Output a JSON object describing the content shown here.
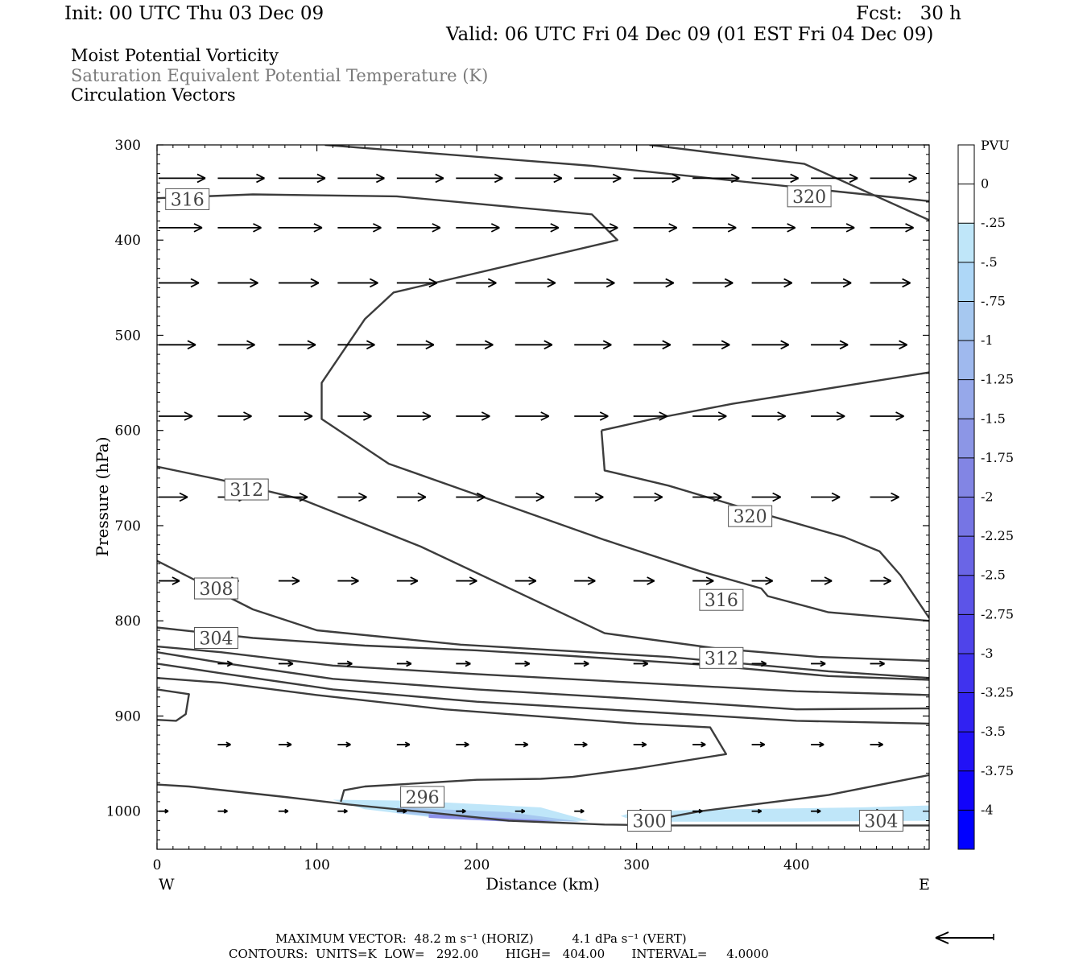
{
  "header": {
    "init": "Init: 00 UTC Thu 03 Dec 09",
    "fcst": "Fcst:   30 h",
    "valid": "Valid: 06 UTC Fri 04 Dec 09 (01 EST Fri 04 Dec 09)"
  },
  "titles": [
    "Moist Potential Vorticity",
    "Saturation Equivalent Potential Temperature (K)",
    "Circulation Vectors"
  ],
  "footer": {
    "max_vector": "MAXIMUM VECTOR:  48.2 m s⁻¹ (HORIZ)          4.1 dPa s⁻¹ (VERT)",
    "contours": "CONTOURS:  UNITS=K  LOW=   292.00       HIGH=   404.00       INTERVAL=     4.0000"
  },
  "colors": {
    "contour": "#3c3c3c",
    "shade_light": "#bfe6f9",
    "shade_mid": "#a6c8f0",
    "shade_dark": "#8c90e8"
  },
  "chart_data": {
    "type": "contour",
    "xlabel": "Distance (km)",
    "ylabel": "Pressure (hPa)",
    "xlim": [
      0,
      483
    ],
    "ylim": [
      1040,
      300
    ],
    "x_ticks": [
      0,
      100,
      200,
      300,
      400
    ],
    "y_ticks": [
      300,
      400,
      500,
      600,
      700,
      800,
      900,
      1000
    ],
    "x_end_labels": {
      "left": "W",
      "right": "E"
    },
    "colorbar": {
      "label": "PVU",
      "ticks": [
        "0",
        "-.25",
        "-.5",
        "-.75",
        "-1",
        "-1.25",
        "-1.5",
        "-1.75",
        "-2",
        "-2.25",
        "-2.5",
        "-2.75",
        "-3",
        "-3.25",
        "-3.5",
        "-3.75",
        "-4"
      ],
      "colors": [
        "#ffffff",
        "#ffffff",
        "#bfe6f9",
        "#aed7f7",
        "#a6c8f0",
        "#9fb9ee",
        "#96a8ea",
        "#8c96e6",
        "#8285e4",
        "#7675e4",
        "#6a65e6",
        "#5c54e8",
        "#4f44ea",
        "#4033ee",
        "#3122f2",
        "#2212f6",
        "#1204fa",
        "#0000ff"
      ]
    },
    "contour_labels": [
      {
        "text": "316",
        "x": 19,
        "p": 357
      },
      {
        "text": "320",
        "x": 408,
        "p": 354
      },
      {
        "text": "312",
        "x": 56,
        "p": 662
      },
      {
        "text": "320",
        "x": 371,
        "p": 690
      },
      {
        "text": "308",
        "x": 37,
        "p": 766
      },
      {
        "text": "316",
        "x": 353,
        "p": 778
      },
      {
        "text": "304",
        "x": 37,
        "p": 818
      },
      {
        "text": "312",
        "x": 353,
        "p": 839
      },
      {
        "text": "296",
        "x": 166,
        "p": 985
      },
      {
        "text": "300",
        "x": 308,
        "p": 1010
      },
      {
        "text": "304",
        "x": 453,
        "p": 1010
      }
    ],
    "contours": [
      {
        "pts": [
          [
            105,
            300
          ],
          [
            272,
            322
          ],
          [
            483,
            359
          ]
        ]
      },
      {
        "pts": [
          [
            308,
            300
          ],
          [
            405,
            320
          ],
          [
            483,
            379
          ]
        ]
      },
      {
        "pts": [
          [
            0,
            356
          ],
          [
            60,
            352
          ],
          [
            150,
            354
          ],
          [
            272,
            373
          ],
          [
            288,
            400
          ],
          [
            148,
            455
          ],
          [
            130,
            483
          ],
          [
            103,
            550
          ],
          [
            103,
            588
          ],
          [
            145,
            635
          ],
          [
            280,
            715
          ],
          [
            340,
            748
          ],
          [
            378,
            766
          ],
          [
            382,
            774
          ],
          [
            420,
            791
          ],
          [
            483,
            800
          ]
        ]
      },
      {
        "pts": [
          [
            278,
            600
          ],
          [
            310,
            588
          ],
          [
            360,
            572
          ],
          [
            483,
            539
          ]
        ]
      },
      {
        "pts": [
          [
            278,
            600
          ],
          [
            280,
            642
          ],
          [
            320,
            658
          ],
          [
            380,
            688
          ],
          [
            430,
            712
          ],
          [
            452,
            727
          ],
          [
            465,
            752
          ],
          [
            483,
            797
          ]
        ]
      },
      {
        "pts": [
          [
            0,
            638
          ],
          [
            40,
            652
          ],
          [
            90,
            672
          ],
          [
            165,
            722
          ],
          [
            280,
            813
          ],
          [
            350,
            829
          ],
          [
            414,
            838
          ],
          [
            483,
            842
          ]
        ]
      },
      {
        "pts": [
          [
            0,
            737
          ],
          [
            60,
            788
          ],
          [
            100,
            810
          ],
          [
            190,
            825
          ],
          [
            320,
            838
          ],
          [
            420,
            853
          ],
          [
            483,
            860
          ]
        ]
      },
      {
        "pts": [
          [
            0,
            807
          ],
          [
            60,
            818
          ],
          [
            130,
            826
          ],
          [
            200,
            831
          ],
          [
            260,
            837
          ],
          [
            340,
            846
          ],
          [
            420,
            858
          ],
          [
            483,
            862
          ]
        ]
      },
      {
        "pts": [
          [
            0,
            827
          ],
          [
            40,
            833
          ],
          [
            110,
            847
          ],
          [
            200,
            856
          ],
          [
            300,
            865
          ],
          [
            400,
            874
          ],
          [
            483,
            878
          ]
        ]
      },
      {
        "pts": [
          [
            0,
            833
          ],
          [
            40,
            844
          ],
          [
            110,
            861
          ],
          [
            200,
            872
          ],
          [
            300,
            882
          ],
          [
            400,
            893
          ],
          [
            483,
            892
          ]
        ]
      },
      {
        "pts": [
          [
            0,
            845
          ],
          [
            40,
            855
          ],
          [
            110,
            872
          ],
          [
            200,
            885
          ],
          [
            300,
            895
          ],
          [
            400,
            905
          ],
          [
            483,
            908
          ]
        ]
      },
      {
        "pts": [
          [
            0,
            872
          ],
          [
            20,
            877
          ],
          [
            18,
            898
          ],
          [
            12,
            905
          ],
          [
            0,
            904
          ]
        ]
      },
      {
        "pts": [
          [
            0,
            972
          ],
          [
            20,
            974
          ],
          [
            80,
            985
          ],
          [
            120,
            993
          ],
          [
            180,
            1003
          ],
          [
            220,
            1010
          ],
          [
            280,
            1014
          ],
          [
            320,
            1015
          ],
          [
            483,
            1015
          ]
        ]
      },
      {
        "pts": [
          [
            308,
            1010
          ],
          [
            340,
            1000
          ],
          [
            420,
            983
          ],
          [
            483,
            962
          ]
        ]
      },
      {
        "pts": [
          [
            115,
            990
          ],
          [
            117,
            978
          ],
          [
            130,
            974
          ],
          [
            200,
            967
          ],
          [
            240,
            966
          ],
          [
            260,
            964
          ],
          [
            300,
            955
          ],
          [
            356,
            940
          ],
          [
            346,
            912
          ],
          [
            300,
            908
          ],
          [
            180,
            893
          ],
          [
            100,
            878
          ],
          [
            40,
            865
          ],
          [
            0,
            860
          ]
        ]
      }
    ],
    "shaded_regions": [
      {
        "level": "-0.25 to -0.5",
        "pts": [
          [
            110,
            988
          ],
          [
            160,
            989
          ],
          [
            240,
            996
          ],
          [
            270,
            1010
          ],
          [
            240,
            1011
          ],
          [
            180,
            1008
          ],
          [
            130,
            998
          ]
        ]
      },
      {
        "level": "-0.5 to -0.75",
        "pts": [
          [
            150,
            996
          ],
          [
            220,
            1001
          ],
          [
            265,
            1011
          ],
          [
            200,
            1009
          ],
          [
            150,
            1002
          ]
        ]
      },
      {
        "level": "-0.75 to -1.0",
        "pts": [
          [
            170,
            1003
          ],
          [
            250,
            1010
          ],
          [
            220,
            1011
          ],
          [
            170,
            1007
          ]
        ]
      },
      {
        "level": "-0.25 to -0.5",
        "pts": [
          [
            290,
            1005
          ],
          [
            300,
            1000
          ],
          [
            360,
            998
          ],
          [
            440,
            996
          ],
          [
            483,
            994
          ],
          [
            483,
            1010
          ],
          [
            400,
            1011
          ],
          [
            300,
            1011
          ]
        ]
      }
    ],
    "vectors": [
      {
        "p": 335,
        "x": [
          0,
          37,
          75,
          112,
          149,
          186,
          223,
          260,
          297,
          334,
          371,
          408,
          445
        ],
        "len": 58
      },
      {
        "p": 387,
        "x": [
          0,
          37,
          75,
          112,
          149,
          186,
          223,
          260,
          297,
          334,
          371,
          408,
          445
        ],
        "len": 54
      },
      {
        "p": 445,
        "x": [
          0,
          37,
          75,
          112,
          149,
          186,
          223,
          260,
          297,
          334,
          371,
          408,
          445
        ],
        "len": 50
      },
      {
        "p": 510,
        "x": [
          0,
          37,
          75,
          112,
          149,
          186,
          223,
          260,
          297,
          334,
          371,
          408,
          445
        ],
        "len": 46
      },
      {
        "p": 585,
        "x": [
          0,
          37,
          75,
          112,
          149,
          186,
          223,
          260,
          297,
          334,
          371,
          408,
          445
        ],
        "len": 42
      },
      {
        "p": 670,
        "x": [
          0,
          37,
          75,
          112,
          149,
          186,
          223,
          260,
          297,
          334,
          371,
          408,
          445
        ],
        "len": 36
      },
      {
        "p": 758,
        "x": [
          0,
          37,
          75,
          112,
          149,
          186,
          223,
          260,
          297,
          334,
          371,
          408,
          445
        ],
        "len": 26
      },
      {
        "p": 845,
        "x": [
          37,
          75,
          112,
          149,
          186,
          223,
          260,
          297,
          334,
          371,
          408,
          445
        ],
        "len": 18
      },
      {
        "p": 930,
        "x": [
          37,
          75,
          112,
          149,
          186,
          223,
          260,
          297,
          334,
          371,
          408,
          445
        ],
        "len": 16
      },
      {
        "p": 1000,
        "x": [
          0,
          37,
          75,
          112,
          149,
          186,
          223,
          260,
          297,
          334,
          371,
          408,
          445
        ],
        "len": 12
      }
    ]
  }
}
